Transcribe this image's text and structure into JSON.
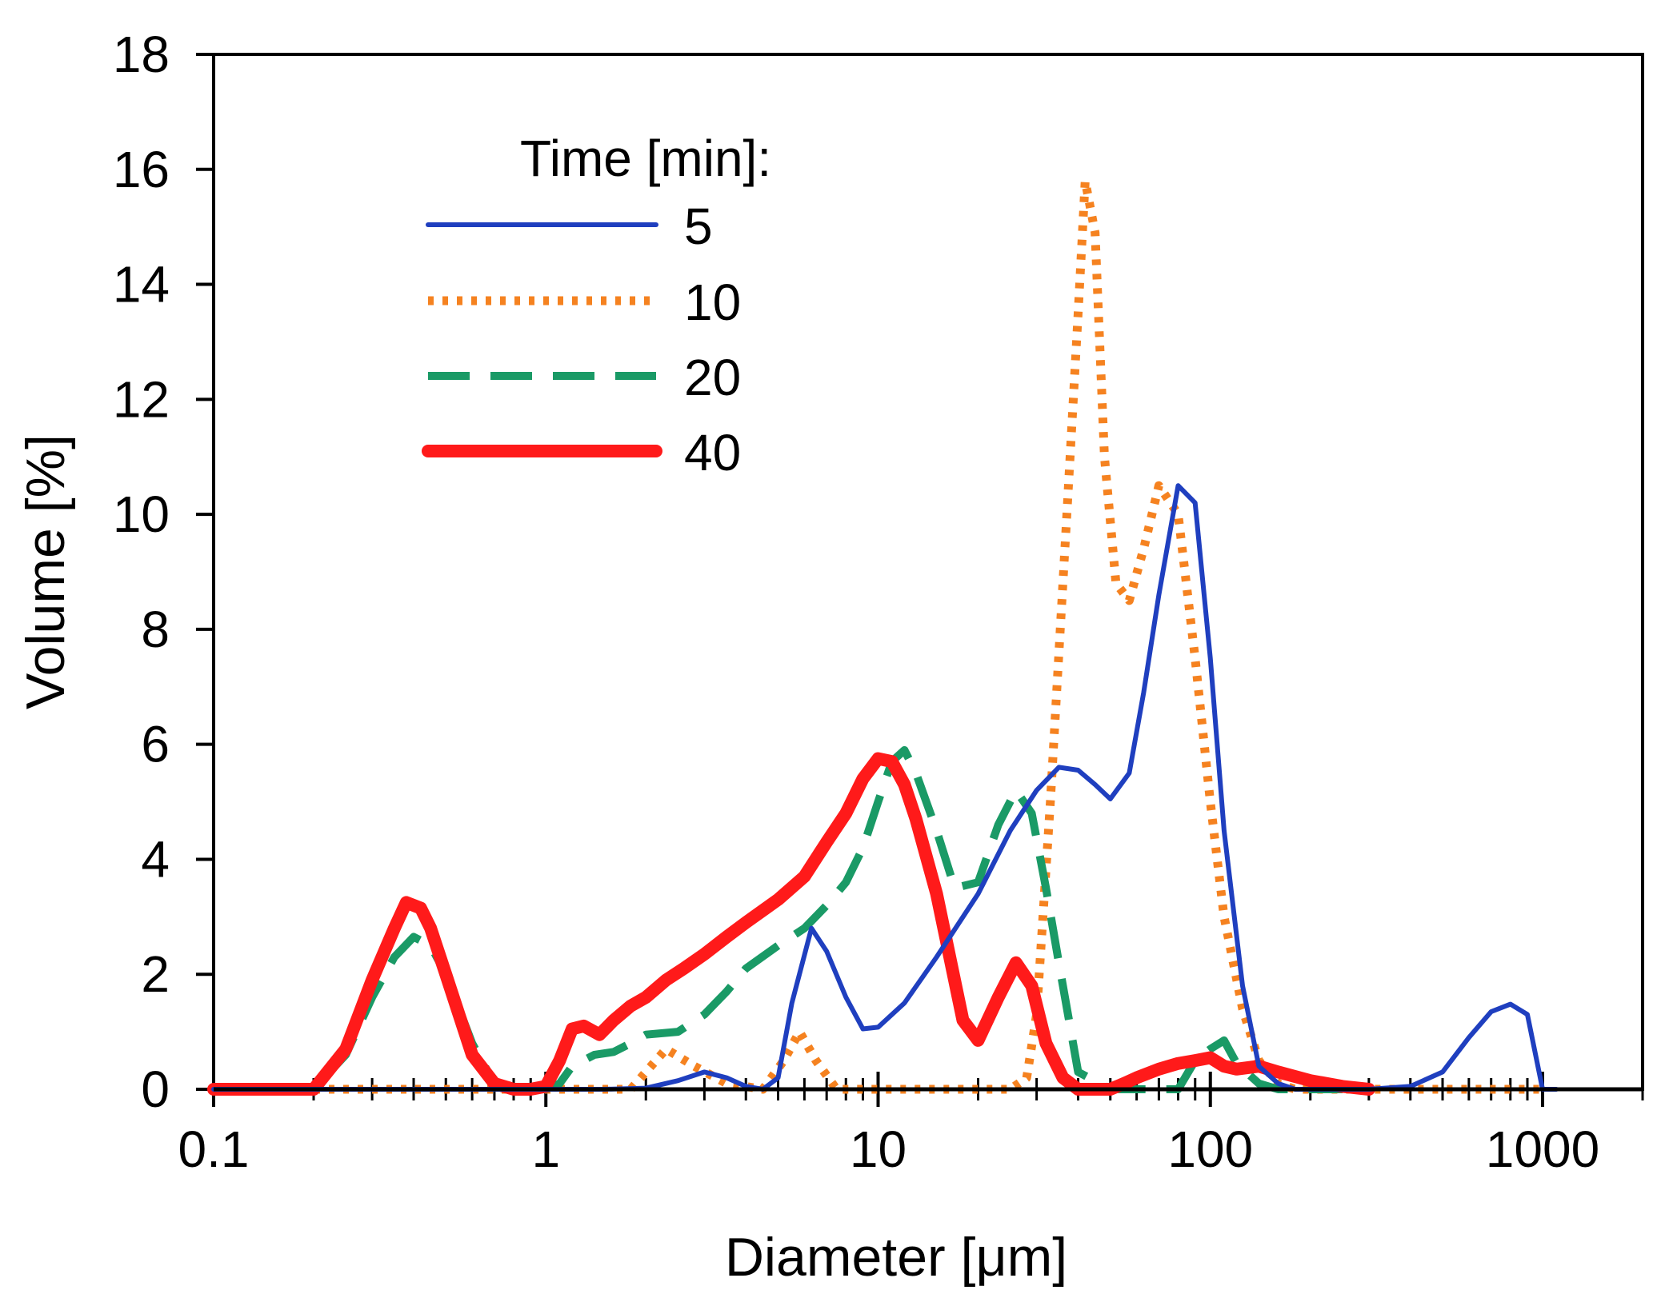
{
  "chart_data": {
    "type": "line",
    "title": "",
    "xlabel": "Diameter [μm]",
    "ylabel": "Volume [%]",
    "xscale": "log",
    "xlim": [
      0.1,
      2000
    ],
    "ylim": [
      0,
      18
    ],
    "x_ticks": [
      0.1,
      1,
      10,
      100,
      1000
    ],
    "x_tick_labels": [
      "0.1",
      "1",
      "10",
      "100",
      "1000"
    ],
    "y_ticks": [
      0,
      2,
      4,
      6,
      8,
      10,
      12,
      14,
      16,
      18
    ],
    "y_tick_labels": [
      "0",
      "2",
      "4",
      "6",
      "8",
      "10",
      "12",
      "14",
      "16",
      "18"
    ],
    "legend": {
      "title": "Time [min]:",
      "placement": "top-left"
    },
    "series": [
      {
        "name": "5",
        "color": "#1f3fbf",
        "style": "solid",
        "x": [
          0.1,
          0.2,
          0.5,
          1,
          1.5,
          2,
          2.5,
          3,
          3.5,
          4,
          4.5,
          5,
          5.5,
          6.3,
          7,
          8,
          9,
          10,
          12,
          15,
          20,
          25,
          30,
          35,
          40,
          45,
          50,
          57,
          63,
          70,
          80,
          90,
          100,
          110,
          125,
          140,
          160,
          180,
          200,
          250,
          300,
          400,
          500,
          600,
          700,
          800,
          900,
          1000,
          1100
        ],
        "y": [
          0,
          0,
          0,
          0,
          0,
          0.02,
          0.15,
          0.3,
          0.2,
          0.05,
          0,
          0.2,
          1.5,
          2.8,
          2.4,
          1.6,
          1.05,
          1.08,
          1.5,
          2.3,
          3.4,
          4.5,
          5.2,
          5.6,
          5.55,
          5.3,
          5.05,
          5.5,
          6.9,
          8.6,
          10.5,
          10.2,
          7.5,
          4.5,
          1.8,
          0.4,
          0.1,
          0,
          0,
          0,
          0,
          0.05,
          0.3,
          0.9,
          1.35,
          1.48,
          1.3,
          0,
          0
        ]
      },
      {
        "name": "10",
        "color": "#f58220",
        "style": "dotted",
        "x": [
          0.1,
          1,
          1.8,
          2.3,
          2.8,
          3.5,
          4.5,
          5.2,
          5.8,
          6.5,
          7.5,
          10,
          15,
          20,
          25,
          28,
          30,
          33,
          37,
          40,
          42,
          45,
          48,
          52,
          57,
          63,
          70,
          80,
          90,
          100,
          110,
          125,
          140,
          160,
          180,
          200,
          250,
          1000
        ],
        "y": [
          0,
          0,
          0,
          0.7,
          0.4,
          0.1,
          0,
          0.5,
          1.0,
          0.5,
          0,
          0,
          0,
          0,
          0,
          0.2,
          1.3,
          5.0,
          10.0,
          13.5,
          15.8,
          14.9,
          11.0,
          8.8,
          8.5,
          9.4,
          10.5,
          10.0,
          7.5,
          5.0,
          3.0,
          1.4,
          0.5,
          0.1,
          0,
          0,
          0,
          0
        ]
      },
      {
        "name": "20",
        "color": "#1a9a66",
        "style": "dashed",
        "x": [
          0.1,
          0.15,
          0.2,
          0.25,
          0.3,
          0.35,
          0.4,
          0.45,
          0.5,
          0.6,
          0.7,
          0.8,
          0.9,
          1.0,
          1.1,
          1.2,
          1.4,
          1.6,
          1.8,
          2.0,
          2.5,
          3.0,
          3.5,
          4.0,
          5.0,
          6.0,
          7.0,
          8.0,
          9.0,
          10,
          11,
          12,
          13,
          15,
          17,
          20,
          23,
          26,
          29,
          32,
          35,
          40,
          50,
          60,
          70,
          80,
          90,
          100,
          110,
          120,
          140,
          160,
          200,
          250
        ],
        "y": [
          0,
          0,
          0,
          0.6,
          1.6,
          2.3,
          2.65,
          2.5,
          2.0,
          0.8,
          0.1,
          0,
          0,
          0,
          0.1,
          0.4,
          0.6,
          0.65,
          0.8,
          0.95,
          1.0,
          1.3,
          1.7,
          2.1,
          2.5,
          2.8,
          3.2,
          3.6,
          4.2,
          5.0,
          5.7,
          5.9,
          5.5,
          4.5,
          3.5,
          3.6,
          4.6,
          5.2,
          4.8,
          3.5,
          2.2,
          0.3,
          0,
          0,
          0,
          0,
          0.5,
          0.7,
          0.85,
          0.45,
          0.1,
          0,
          0,
          0
        ]
      },
      {
        "name": "40",
        "color": "#ff1a1a",
        "style": "thick-solid",
        "x": [
          0.1,
          0.15,
          0.2,
          0.25,
          0.3,
          0.35,
          0.38,
          0.42,
          0.45,
          0.5,
          0.6,
          0.7,
          0.8,
          0.9,
          1.0,
          1.1,
          1.2,
          1.3,
          1.45,
          1.6,
          1.8,
          2.0,
          2.3,
          2.6,
          3.0,
          3.5,
          4.0,
          5.0,
          6.0,
          7.0,
          8.0,
          9.0,
          10,
          11,
          12,
          13,
          15,
          18,
          20,
          23,
          26,
          29,
          32,
          36,
          40,
          45,
          50,
          55,
          60,
          70,
          80,
          90,
          100,
          110,
          120,
          140,
          160,
          200,
          250,
          300
        ],
        "y": [
          0,
          0,
          0,
          0.7,
          1.9,
          2.8,
          3.25,
          3.15,
          2.8,
          2.0,
          0.6,
          0.1,
          0,
          0,
          0.05,
          0.5,
          1.05,
          1.1,
          0.95,
          1.2,
          1.45,
          1.6,
          1.9,
          2.1,
          2.35,
          2.65,
          2.9,
          3.3,
          3.7,
          4.3,
          4.8,
          5.4,
          5.75,
          5.7,
          5.3,
          4.7,
          3.4,
          1.2,
          0.85,
          1.6,
          2.2,
          1.8,
          0.8,
          0.2,
          0,
          0,
          0,
          0.1,
          0.2,
          0.35,
          0.45,
          0.5,
          0.55,
          0.4,
          0.35,
          0.4,
          0.3,
          0.15,
          0.05,
          0
        ]
      }
    ]
  }
}
